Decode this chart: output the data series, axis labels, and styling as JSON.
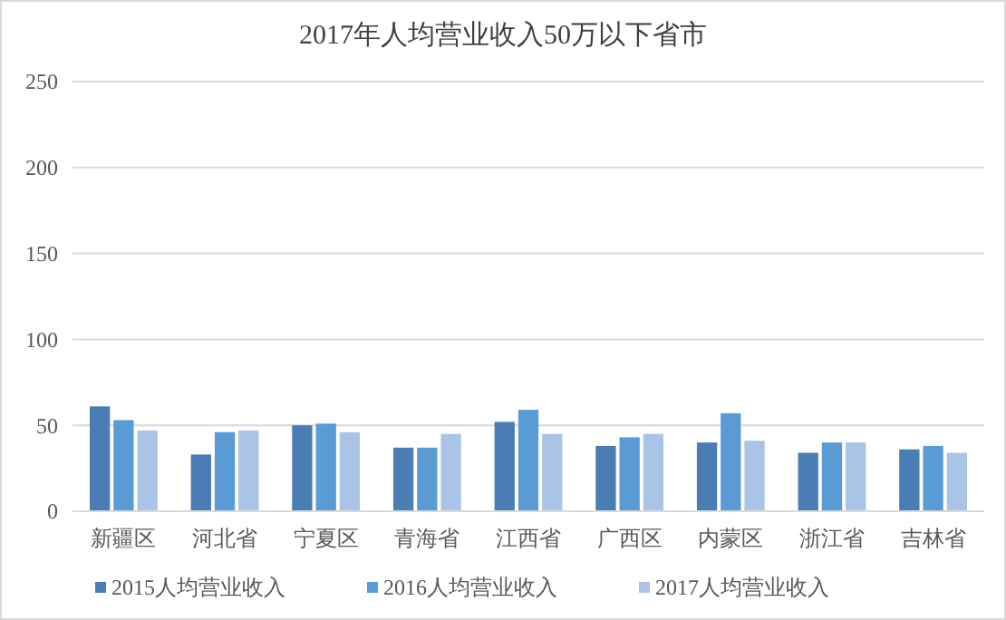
{
  "chart_data": {
    "type": "bar",
    "title": "2017年人均营业收入50万以下省市",
    "categories": [
      "新疆区",
      "河北省",
      "宁夏区",
      "青海省",
      "江西省",
      "广西区",
      "内蒙区",
      "浙江省",
      "吉林省"
    ],
    "series": [
      {
        "name": "2015人均营业收入",
        "color": "#4a7db5",
        "values": [
          61,
          33,
          50,
          37,
          52,
          38,
          40,
          34,
          36
        ]
      },
      {
        "name": "2016人均营业收入",
        "color": "#5b9bd5",
        "values": [
          53,
          46,
          51,
          37,
          59,
          43,
          57,
          40,
          38
        ]
      },
      {
        "name": "2017人均营业收入",
        "color": "#a9c4e6",
        "values": [
          47,
          47,
          46,
          45,
          45,
          45,
          41,
          40,
          34
        ]
      }
    ],
    "ylim": [
      0,
      250
    ],
    "yticks": [
      0,
      50,
      100,
      150,
      200,
      250
    ],
    "grid": "y",
    "legend": "bottom"
  }
}
